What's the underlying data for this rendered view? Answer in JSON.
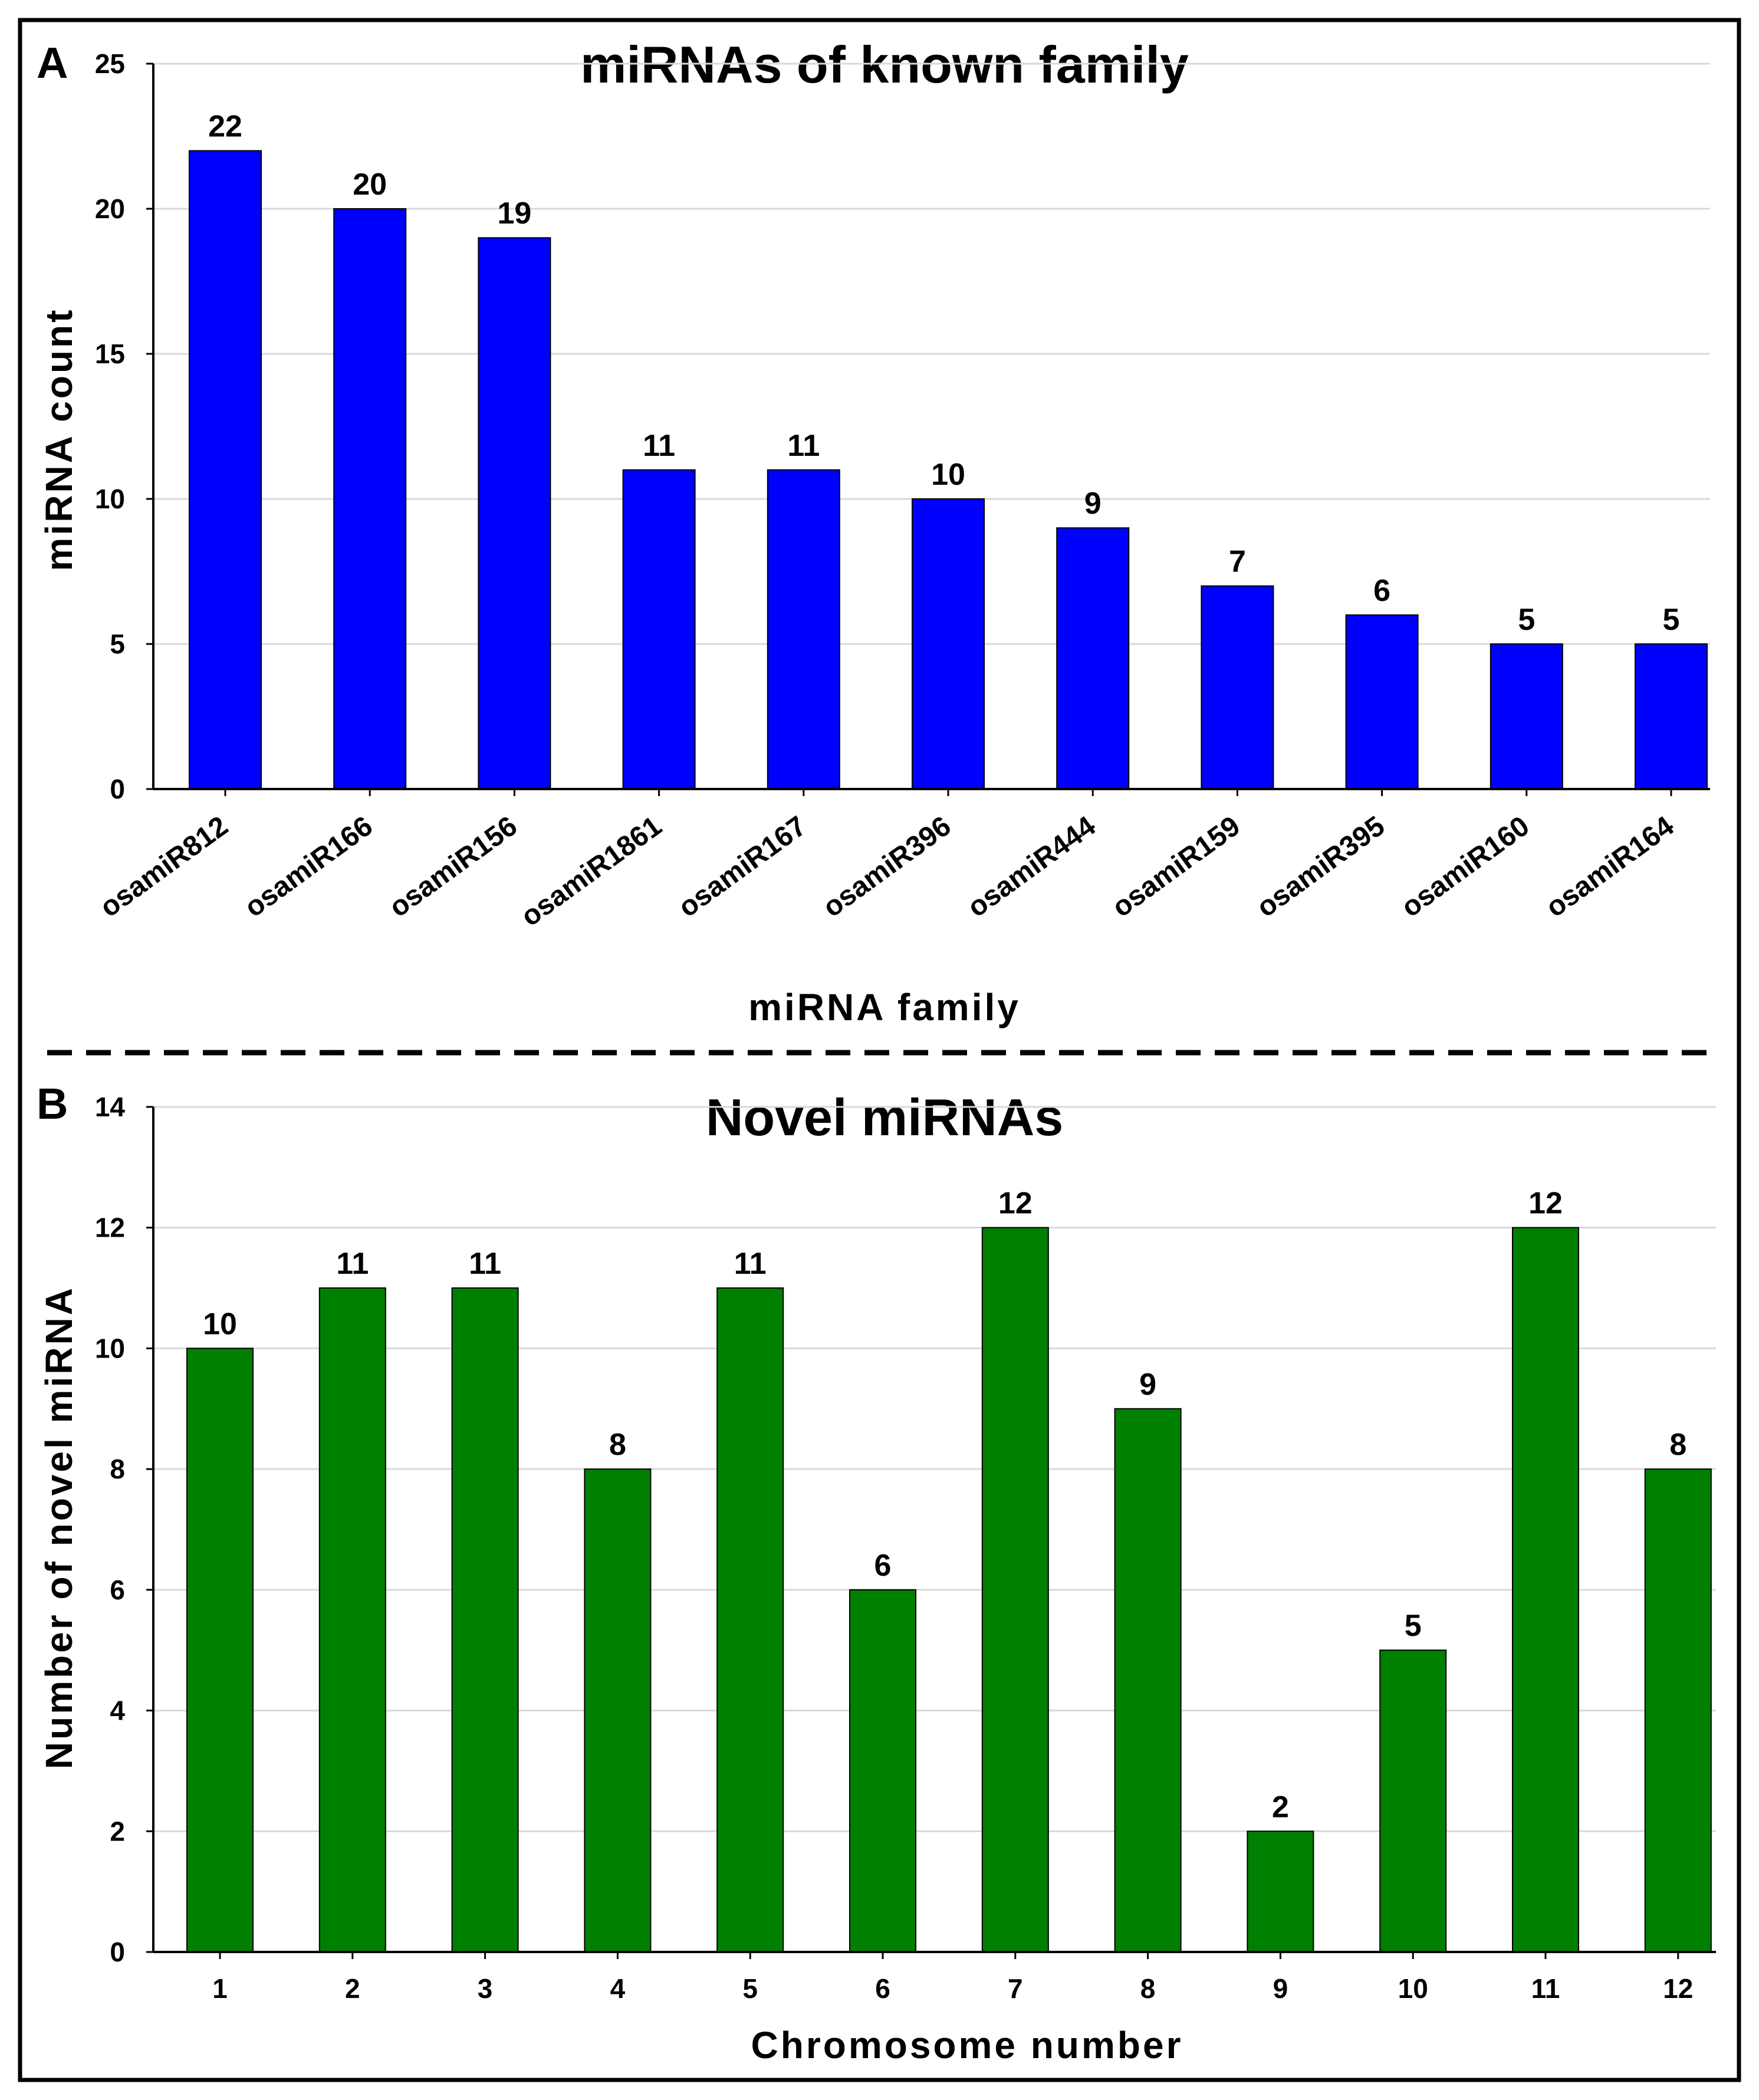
{
  "chart_data": [
    {
      "panel": "A",
      "type": "bar",
      "title": "miRNAs of known family",
      "xlabel": "miRNA family",
      "ylabel": "miRNA count",
      "categories": [
        "osamiR812",
        "osamiR166",
        "osamiR156",
        "osamiR1861",
        "osamiR167",
        "osamiR396",
        "osamiR444",
        "osamiR159",
        "osamiR395",
        "osamiR160",
        "osamiR164"
      ],
      "values": [
        22,
        20,
        19,
        11,
        11,
        10,
        9,
        7,
        6,
        5,
        5
      ],
      "ylim": [
        0,
        25
      ],
      "yticks": [
        0,
        5,
        10,
        15,
        20,
        25
      ],
      "bar_color": "#0000ff",
      "grid": true,
      "data_labels": true
    },
    {
      "panel": "B",
      "type": "bar",
      "title": "Novel miRNAs",
      "xlabel": "Chromosome number",
      "ylabel": "Number of novel miRNA",
      "categories": [
        "1",
        "2",
        "3",
        "4",
        "5",
        "6",
        "7",
        "8",
        "9",
        "10",
        "11",
        "12"
      ],
      "values": [
        10,
        11,
        11,
        8,
        11,
        6,
        12,
        9,
        2,
        5,
        12,
        8
      ],
      "ylim": [
        0,
        14
      ],
      "yticks": [
        0,
        2,
        4,
        6,
        8,
        10,
        12,
        14
      ],
      "bar_color": "#008000",
      "grid": true,
      "data_labels": true
    }
  ],
  "colors": {
    "border": "#000000",
    "grid": "#d9d9d9",
    "divider": "#000000"
  }
}
